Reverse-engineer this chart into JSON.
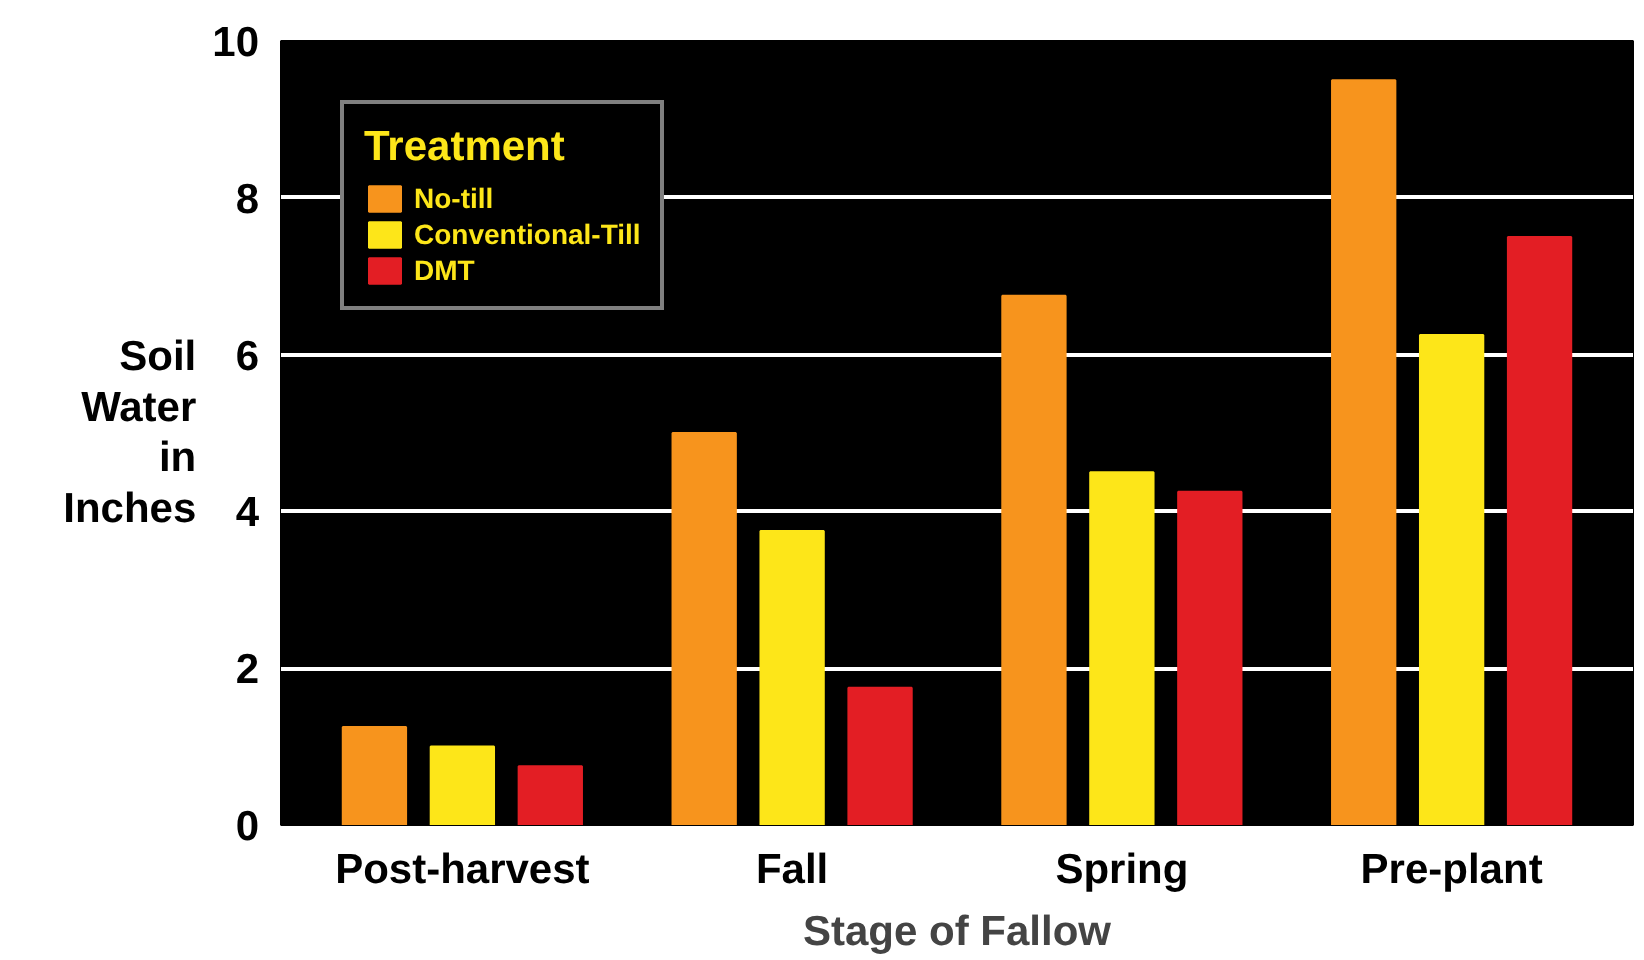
{
  "chart_data": {
    "type": "bar",
    "xlabel": "Stage of Fallow",
    "ylabel": "Soil Water in Inches",
    "legend_title": "Treatment",
    "categories": [
      "Post-harvest",
      "Fall",
      "Spring",
      "Pre-plant"
    ],
    "series": [
      {
        "name": "No-till",
        "color": "#f7941d",
        "values": [
          1.25,
          5.0,
          6.75,
          9.5
        ]
      },
      {
        "name": "Conventional-Till",
        "color": "#fde619",
        "values": [
          1.0,
          3.75,
          4.5,
          6.25
        ]
      },
      {
        "name": "DMT",
        "color": "#e31e24",
        "values": [
          0.75,
          1.75,
          4.25,
          7.5
        ]
      }
    ],
    "ylim": [
      0,
      10
    ],
    "yticks": [
      0,
      2,
      4,
      6,
      8,
      10
    ],
    "grid": "y",
    "legend": "top left"
  }
}
